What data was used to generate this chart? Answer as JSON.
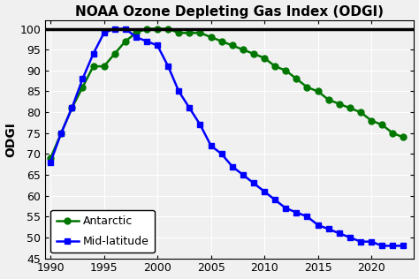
{
  "title": "NOAA Ozone Depleting Gas Index (ODGI)",
  "ylabel": "ODGI",
  "xlim": [
    1989.5,
    2024
  ],
  "ylim": [
    45,
    102
  ],
  "yticks": [
    45,
    50,
    55,
    60,
    65,
    70,
    75,
    80,
    85,
    90,
    95,
    100
  ],
  "xticks": [
    1990,
    1995,
    2000,
    2005,
    2010,
    2015,
    2020
  ],
  "hline_y": 100,
  "antarctic": {
    "years": [
      1990,
      1991,
      1992,
      1993,
      1994,
      1995,
      1996,
      1997,
      1998,
      1999,
      2000,
      2001,
      2002,
      2003,
      2004,
      2005,
      2006,
      2007,
      2008,
      2009,
      2010,
      2011,
      2012,
      2013,
      2014,
      2015,
      2016,
      2017,
      2018,
      2019,
      2020,
      2021,
      2022,
      2023
    ],
    "values": [
      69,
      75,
      81,
      86,
      91,
      91,
      94,
      97,
      99,
      100,
      100,
      100,
      99,
      99,
      99,
      98,
      97,
      96,
      95,
      94,
      93,
      91,
      90,
      88,
      86,
      85,
      83,
      82,
      81,
      80,
      78,
      77,
      75,
      74
    ],
    "color": "#007700",
    "marker": "o",
    "markersize": 5,
    "linewidth": 1.8,
    "label": "Antarctic"
  },
  "midlat": {
    "years": [
      1990,
      1991,
      1992,
      1993,
      1994,
      1995,
      1996,
      1997,
      1998,
      1999,
      2000,
      2001,
      2002,
      2003,
      2004,
      2005,
      2006,
      2007,
      2008,
      2009,
      2010,
      2011,
      2012,
      2013,
      2014,
      2015,
      2016,
      2017,
      2018,
      2019,
      2020,
      2021,
      2022,
      2023
    ],
    "values": [
      68,
      75,
      81,
      88,
      94,
      99,
      100,
      100,
      98,
      97,
      96,
      91,
      85,
      81,
      77,
      72,
      70,
      67,
      65,
      63,
      61,
      59,
      57,
      56,
      55,
      53,
      52,
      51,
      50,
      49,
      49,
      48,
      48,
      48
    ],
    "color": "#0000FF",
    "marker": "s",
    "markersize": 5,
    "linewidth": 1.8,
    "label": "Mid-latitude"
  },
  "fig_bg": "#f0f0f0",
  "plot_bg": "#f0f0f0",
  "grid_color": "#ffffff",
  "title_fontsize": 11,
  "axis_label_fontsize": 10,
  "tick_fontsize": 9,
  "legend_fontsize": 9
}
